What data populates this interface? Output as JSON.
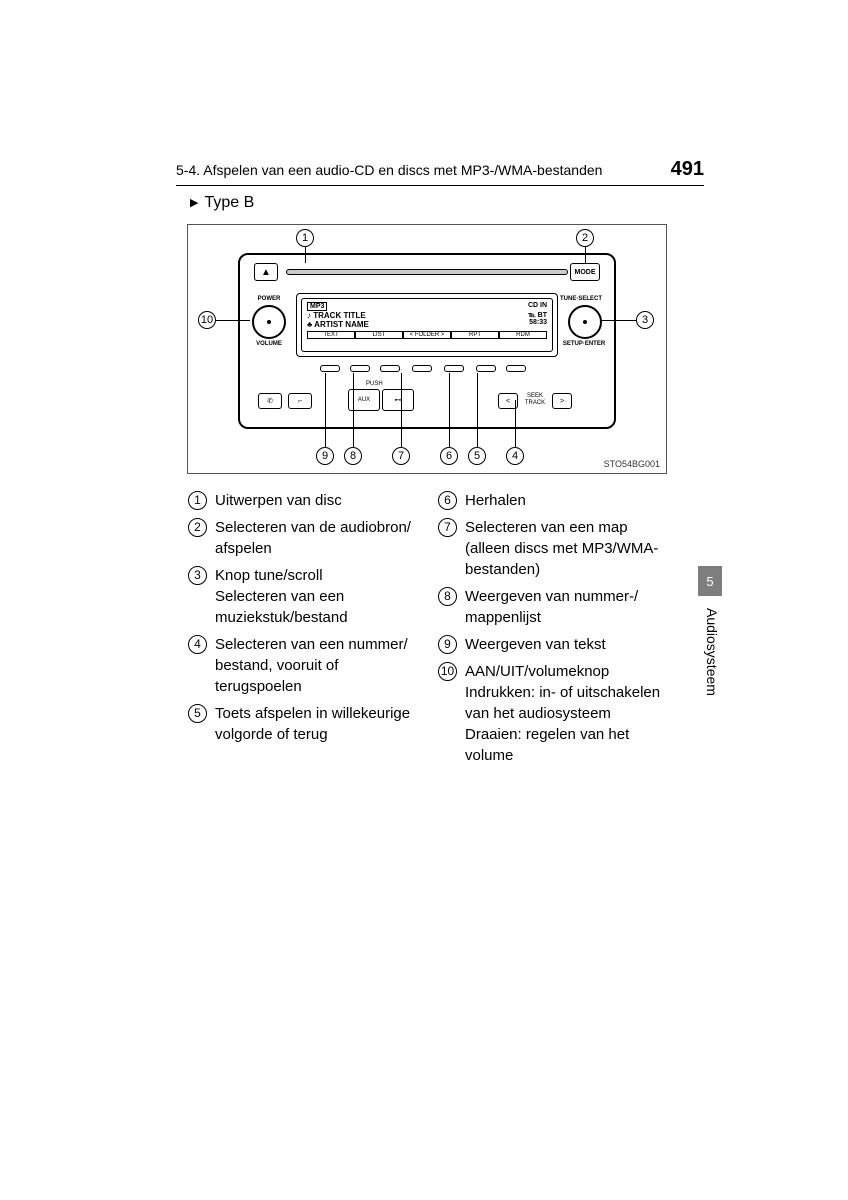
{
  "header": {
    "section": "5-4. Afspelen van een audio-CD en discs met MP3-/WMA-bestanden",
    "page": "491"
  },
  "subhead": "Type B",
  "diagram": {
    "labels": {
      "mode": "MODE",
      "power": "POWER",
      "volume": "VOLUME",
      "tune": "TUNE·SELECT",
      "setup": "SETUP·ENTER",
      "mp3": "MP3",
      "track": "♪ TRACK TITLE",
      "artist": "♣ ARTIST NAME",
      "cdin": "CD IN",
      "bt": "℡ BT",
      "time": "58:33",
      "tabs": [
        "TEXT",
        "LIST",
        "< FOLDER >",
        "RPT",
        "RDM"
      ],
      "aux": "AUX",
      "push": "PUSH",
      "seek": "SEEK\nTRACK",
      "fig_id": "STO54BG001"
    },
    "callouts": [
      "1",
      "2",
      "3",
      "4",
      "5",
      "6",
      "7",
      "8",
      "9",
      "10"
    ]
  },
  "legend": {
    "left": [
      {
        "n": "1",
        "t": "Uitwerpen van disc"
      },
      {
        "n": "2",
        "t": "Selecteren van de audiobron/ afspelen"
      },
      {
        "n": "3",
        "t": "Knop tune/scroll\nSelecteren van een muziekstuk/bestand"
      },
      {
        "n": "4",
        "t": "Selecteren van een nummer/ bestand, vooruit of terugspoelen"
      },
      {
        "n": "5",
        "t": "Toets afspelen in willekeurige volgorde of terug"
      }
    ],
    "right": [
      {
        "n": "6",
        "t": "Herhalen"
      },
      {
        "n": "7",
        "t": "Selecteren van een map (alleen discs met MP3/WMA-bestanden)"
      },
      {
        "n": "8",
        "t": "Weergeven van nummer-/ mappenlijst"
      },
      {
        "n": "9",
        "t": "Weergeven van tekst"
      },
      {
        "n": "10",
        "t": "AAN/UIT/volumeknop\nIndrukken: in- of uitschakelen van het audiosysteem\nDraaien: regelen van het volume"
      }
    ]
  },
  "tab": {
    "num": "5",
    "label": "Audiosysteem"
  }
}
